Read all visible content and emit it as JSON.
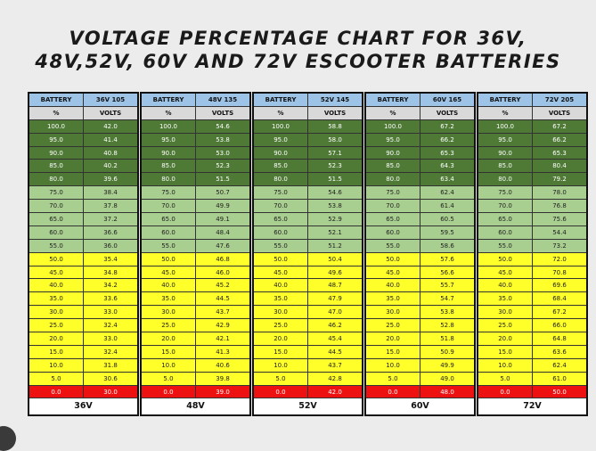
{
  "title_line1": "VOLTAGE PERCENTAGE CHART FOR 36V,",
  "title_line2": "48V,52V, 60V AND 72V ESCOOTER BATTERIES",
  "header": {
    "battery": "BATTERY",
    "percent": "%",
    "volts": "VOLTS"
  },
  "percent": [
    "100.0",
    "95.0",
    "90.0",
    "85.0",
    "80.0",
    "75.0",
    "70.0",
    "65.0",
    "60.0",
    "55.0",
    "50.0",
    "45.0",
    "40.0",
    "35.0",
    "30.0",
    "25.0",
    "20.0",
    "15.0",
    "10.0",
    "5.0",
    "0.0"
  ],
  "row_colors": [
    "g1",
    "g1",
    "g1",
    "g1",
    "g1",
    "g2",
    "g2",
    "g2",
    "g2",
    "g2",
    "y",
    "y",
    "y",
    "y",
    "y",
    "y",
    "y",
    "y",
    "y",
    "y",
    "r"
  ],
  "tables": [
    {
      "model": "36V 105",
      "footer": "36V",
      "volts": [
        "42.0",
        "41.4",
        "40.8",
        "40.2",
        "39.6",
        "38.4",
        "37.8",
        "37.2",
        "36.6",
        "36.0",
        "35.4",
        "34.8",
        "34.2",
        "33.6",
        "33.0",
        "32.4",
        "33.0",
        "32.4",
        "31.8",
        "30.6",
        "30.0"
      ]
    },
    {
      "model": "48V 135",
      "footer": "48V",
      "volts": [
        "54.6",
        "53.8",
        "53.0",
        "52.3",
        "51.5",
        "50.7",
        "49.9",
        "49.1",
        "48.4",
        "47.6",
        "46.8",
        "46.0",
        "45.2",
        "44.5",
        "43.7",
        "42.9",
        "42.1",
        "41.3",
        "40.6",
        "39.8",
        "39.0"
      ]
    },
    {
      "model": "52V 145",
      "footer": "52V",
      "volts": [
        "58.8",
        "58.0",
        "57.1",
        "52.3",
        "51.5",
        "54.6",
        "53.8",
        "52.9",
        "52.1",
        "51.2",
        "50.4",
        "49.6",
        "48.7",
        "47.9",
        "47.0",
        "46.2",
        "45.4",
        "44.5",
        "43.7",
        "42.8",
        "42.0"
      ]
    },
    {
      "model": "60V 165",
      "footer": "60V",
      "volts": [
        "67.2",
        "66.2",
        "65.3",
        "64.3",
        "63.4",
        "62.4",
        "61.4",
        "60.5",
        "59.5",
        "58.6",
        "57.6",
        "56.6",
        "55.7",
        "54.7",
        "53.8",
        "52.8",
        "51.8",
        "50.9",
        "49.9",
        "49.0",
        "48.0"
      ]
    },
    {
      "model": "72V 205",
      "footer": "72V",
      "volts": [
        "67.2",
        "66.2",
        "65.3",
        "80.4",
        "79.2",
        "78.0",
        "76.8",
        "75.6",
        "54.4",
        "73.2",
        "72.0",
        "70.8",
        "69.6",
        "68.4",
        "67.2",
        "66.0",
        "64.8",
        "63.6",
        "62.4",
        "61.0",
        "50.0"
      ]
    }
  ]
}
